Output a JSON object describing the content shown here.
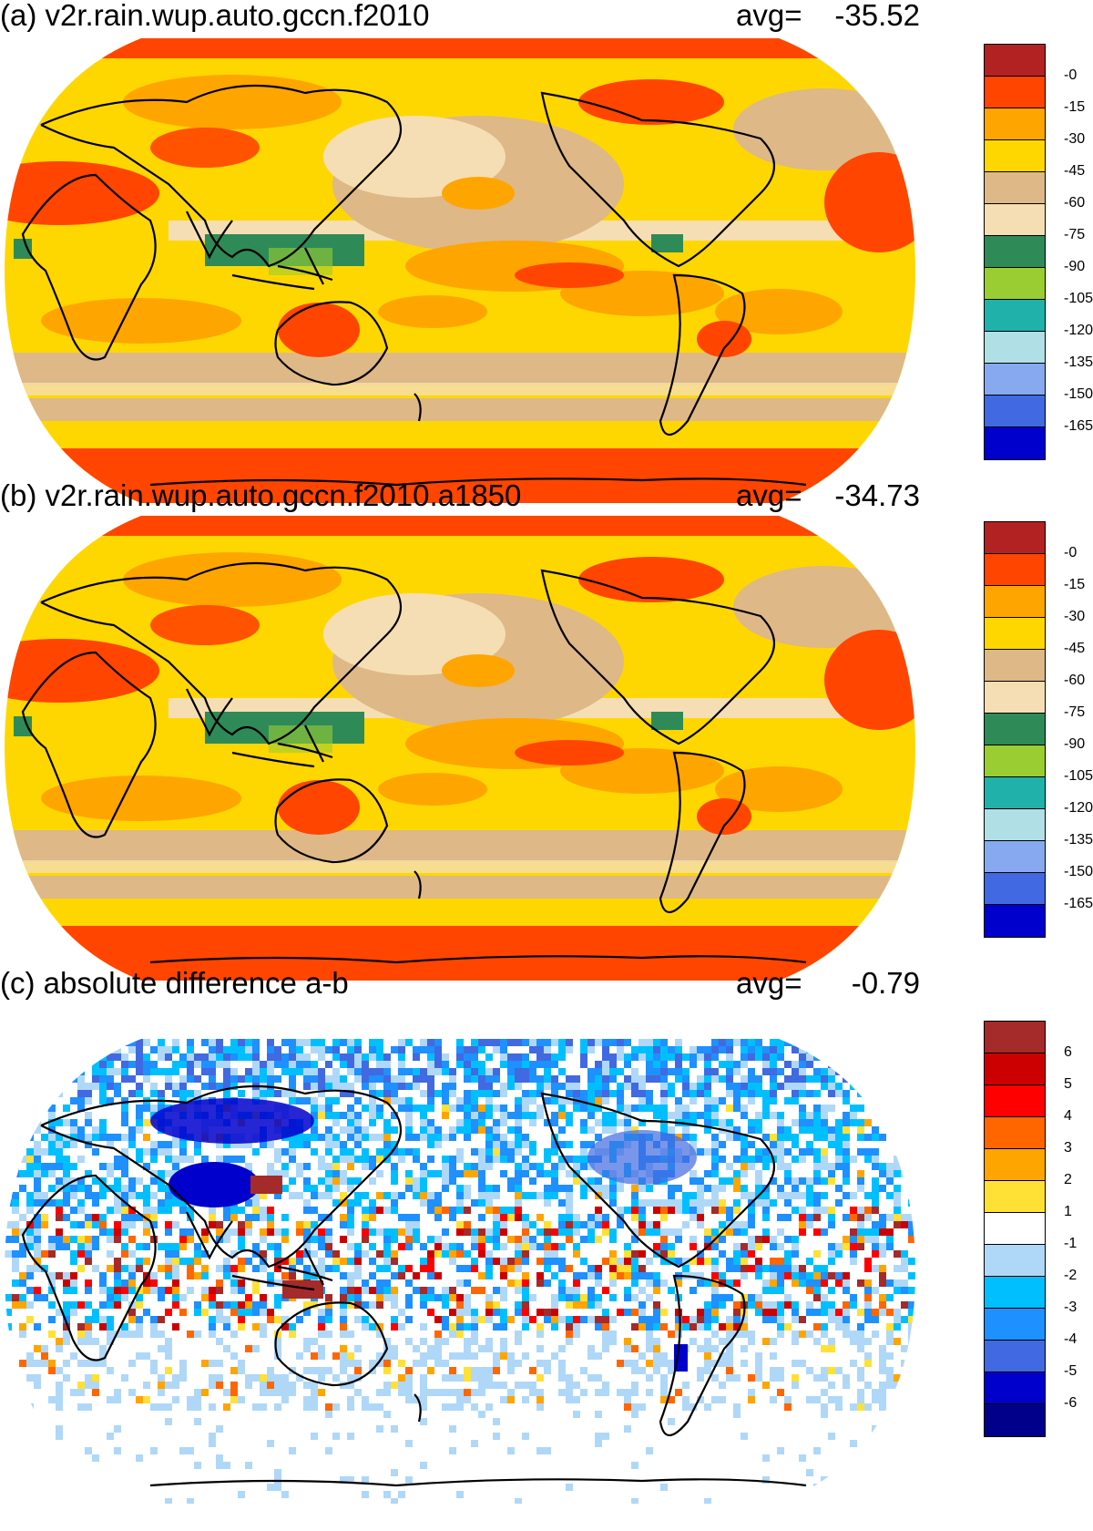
{
  "panels": [
    {
      "id": "a",
      "title": "(a) v2r.rain.wup.auto.gccn.f2010",
      "avg_label": "avg=",
      "avg_value": "-35.52",
      "base_color": "#ffd700",
      "colorbar": {
        "colors": [
          "#b22222",
          "#ff4500",
          "#ffa500",
          "#ffd700",
          "#deb887",
          "#f5deb3",
          "#2e8b57",
          "#9acd32",
          "#20b2aa",
          "#b0e0e6",
          "#87a9f0",
          "#4169e1",
          "#0000cd"
        ],
        "labels": [
          "-0",
          "-15",
          "-30",
          "-45",
          "-60",
          "-75",
          "-90",
          "-105",
          "-120",
          "-135",
          "-150",
          "-165"
        ]
      }
    },
    {
      "id": "b",
      "title": "(b) v2r.rain.wup.auto.gccn.f2010.a1850",
      "avg_label": "avg=",
      "avg_value": "-34.73",
      "base_color": "#ffd700",
      "colorbar": {
        "colors": [
          "#b22222",
          "#ff4500",
          "#ffa500",
          "#ffd700",
          "#deb887",
          "#f5deb3",
          "#2e8b57",
          "#9acd32",
          "#20b2aa",
          "#b0e0e6",
          "#87a9f0",
          "#4169e1",
          "#0000cd"
        ],
        "labels": [
          "-0",
          "-15",
          "-30",
          "-45",
          "-60",
          "-75",
          "-90",
          "-105",
          "-120",
          "-135",
          "-150",
          "-165"
        ]
      }
    },
    {
      "id": "c",
      "title": "(c) absolute difference a-b",
      "avg_label": "avg=",
      "avg_value": "-0.79",
      "base_color": "#ffffff",
      "colorbar": {
        "colors": [
          "#a52a2a",
          "#cd0000",
          "#ff0000",
          "#ff6600",
          "#ffa500",
          "#ffe135",
          "#ffffff",
          "#afd8f8",
          "#00bfff",
          "#1e90ff",
          "#4169e1",
          "#0000cd",
          "#00008b"
        ],
        "labels": [
          "6",
          "5",
          "4",
          "3",
          "2",
          "1",
          "-1",
          "-2",
          "-3",
          "-4",
          "-5",
          "-6"
        ]
      }
    }
  ]
}
